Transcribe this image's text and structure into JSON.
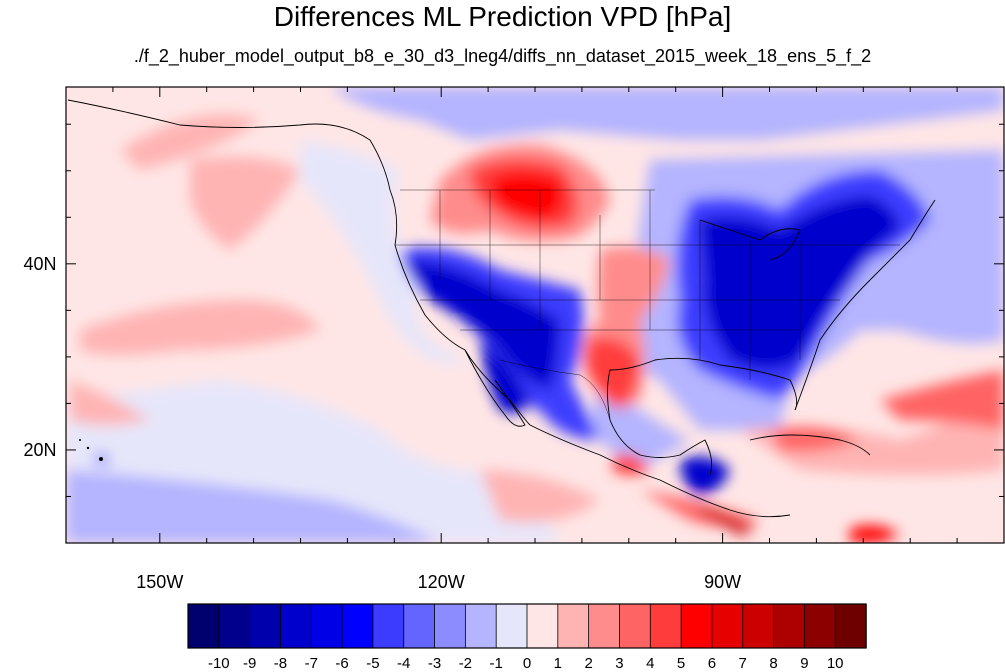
{
  "title": "Differences ML Prediction VPD [hPa]",
  "subtitle": "./f_2_huber_model_output_b8_e_30_d3_lneg4/diffs_nn_dataset_2015_week_18_ens_5_f_2",
  "map": {
    "lon_range": [
      -160,
      -60
    ],
    "lat_range": [
      10,
      59
    ],
    "x_ticks": [
      {
        "value": -150,
        "label": "150W"
      },
      {
        "value": -120,
        "label": "120W"
      },
      {
        "value": -90,
        "label": "90W"
      }
    ],
    "y_ticks": [
      {
        "value": 20,
        "label": "20N"
      },
      {
        "value": 40,
        "label": "40N"
      }
    ]
  },
  "colorbar": {
    "labels": [
      "-10",
      "-9",
      "-8",
      "-7",
      "-6",
      "-5",
      "-4",
      "-3",
      "-2",
      "-1",
      "0",
      "1",
      "2",
      "3",
      "4",
      "5",
      "6",
      "7",
      "8",
      "9",
      "10"
    ],
    "colors": [
      "#00006e",
      "#00008c",
      "#0000ad",
      "#0000cd",
      "#0000e6",
      "#0000ff",
      "#3c3cff",
      "#6464ff",
      "#8c8cff",
      "#b4b4ff",
      "#e6e6fa",
      "#ffe6e6",
      "#ffb4b4",
      "#ff8c8c",
      "#ff6464",
      "#ff3c3c",
      "#ff0000",
      "#e60000",
      "#cd0000",
      "#ad0000",
      "#8c0000",
      "#6e0000"
    ]
  }
}
